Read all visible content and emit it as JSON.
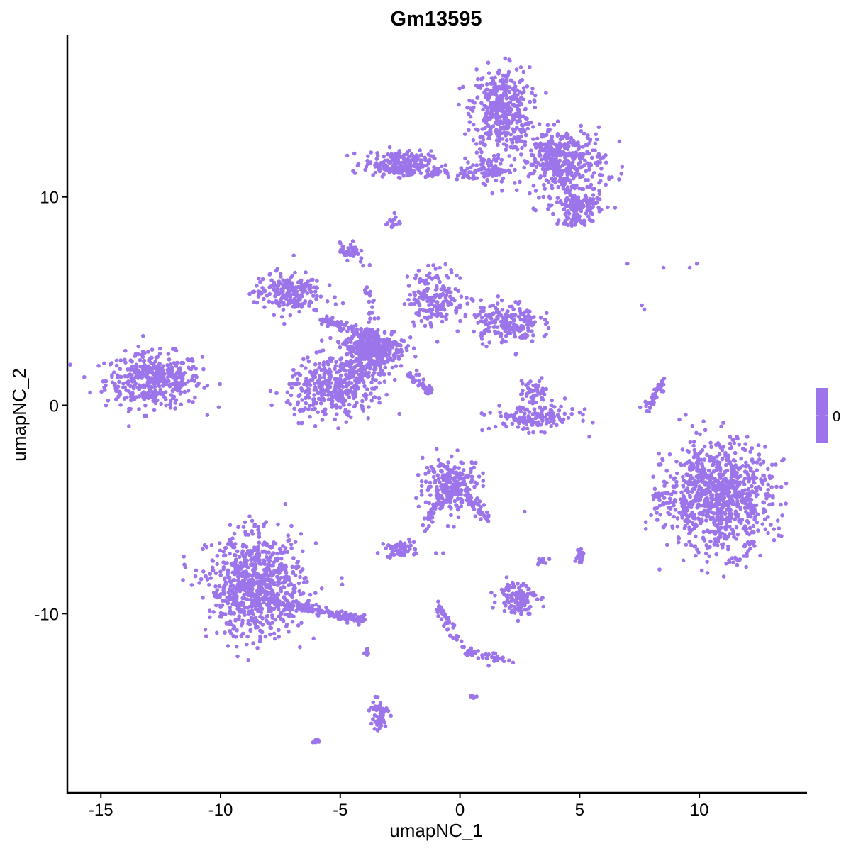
{
  "chart_data": {
    "type": "scatter",
    "title": "Gm13595",
    "xlabel": "umapNC_1",
    "ylabel": "umapNC_2",
    "xlim": [
      -16.4,
      14.5
    ],
    "ylim": [
      -18.6,
      17.75
    ],
    "xticks": [
      -15,
      -10,
      -5,
      0,
      5,
      10
    ],
    "yticks": [
      -10,
      0,
      10
    ],
    "grid": false,
    "point_color": "#9c75ea",
    "legend": {
      "type": "colorbar",
      "placement": "right",
      "labels": [
        "0"
      ],
      "color": "#9c75ea"
    },
    "clusters": [
      {
        "cx": -12.8,
        "cy": 1.2,
        "sx": 1.0,
        "sy": 0.65,
        "n": 420
      },
      {
        "cx": 1.7,
        "cy": 14.2,
        "sx": 0.6,
        "sy": 1.0,
        "n": 420
      },
      {
        "cx": 4.3,
        "cy": 11.7,
        "sx": 0.9,
        "sy": 0.8,
        "n": 380
      },
      {
        "cx": 5.0,
        "cy": 9.6,
        "sx": 0.5,
        "sy": 0.3,
        "n": 120
      },
      {
        "cx": 4.8,
        "cy": 8.9,
        "sx": 0.3,
        "sy": 0.2,
        "n": 40
      },
      {
        "cx": -2.6,
        "cy": 11.6,
        "sx": 0.7,
        "sy": 0.3,
        "n": 200
      },
      {
        "cx": 1.2,
        "cy": 11.3,
        "sx": 0.4,
        "sy": 0.3,
        "n": 80
      },
      {
        "cx": -2.8,
        "cy": 8.8,
        "sx": 0.15,
        "sy": 0.2,
        "n": 15
      },
      {
        "cx": -3.5,
        "cy": 2.75,
        "sx": 0.6,
        "sy": 0.5,
        "n": 300
      },
      {
        "cx": -4.2,
        "cy": 2.0,
        "sx": 0.5,
        "sy": 0.8,
        "n": 150
      },
      {
        "cx": -7.2,
        "cy": 5.4,
        "sx": 0.7,
        "sy": 0.5,
        "n": 200
      },
      {
        "cx": -4.6,
        "cy": 7.4,
        "sx": 0.2,
        "sy": 0.2,
        "n": 40
      },
      {
        "cx": -1.0,
        "cy": 5.2,
        "sx": 0.6,
        "sy": 0.7,
        "n": 180
      },
      {
        "cx": 1.9,
        "cy": 4.0,
        "sx": 0.7,
        "sy": 0.5,
        "n": 200
      },
      {
        "cx": -5.4,
        "cy": 0.8,
        "sx": 0.9,
        "sy": 0.7,
        "n": 350
      },
      {
        "cx": 3.1,
        "cy": -0.6,
        "sx": 0.9,
        "sy": 0.3,
        "n": 150
      },
      {
        "cx": 3.1,
        "cy": 0.6,
        "sx": 0.3,
        "sy": 0.3,
        "n": 50
      },
      {
        "cx": 10.8,
        "cy": -4.4,
        "sx": 1.1,
        "sy": 1.3,
        "n": 900
      },
      {
        "cx": 8.5,
        "cy": -4.5,
        "sx": 0.3,
        "sy": 0.4,
        "n": 30
      },
      {
        "cx": -0.3,
        "cy": -3.8,
        "sx": 0.6,
        "sy": 0.6,
        "n": 250
      },
      {
        "cx": -8.5,
        "cy": -8.7,
        "sx": 1.0,
        "sy": 1.2,
        "n": 800
      },
      {
        "cx": -2.5,
        "cy": -6.9,
        "sx": 0.3,
        "sy": 0.2,
        "n": 60
      },
      {
        "cx": 2.4,
        "cy": -9.2,
        "sx": 0.4,
        "sy": 0.4,
        "n": 120
      },
      {
        "cx": 5.0,
        "cy": -7.2,
        "sx": 0.1,
        "sy": 0.2,
        "n": 25
      },
      {
        "cx": 3.4,
        "cy": -7.5,
        "sx": 0.1,
        "sy": 0.1,
        "n": 10
      },
      {
        "cx": -3.4,
        "cy": -14.9,
        "sx": 0.2,
        "sy": 0.4,
        "n": 60
      },
      {
        "cx": -3.9,
        "cy": -11.8,
        "sx": 0.05,
        "sy": 0.1,
        "n": 8
      },
      {
        "cx": -6.0,
        "cy": -16.1,
        "sx": 0.1,
        "sy": 0.05,
        "n": 8
      },
      {
        "cx": 0.6,
        "cy": -14.0,
        "sx": 0.1,
        "sy": 0.05,
        "n": 8
      }
    ],
    "trails": [
      {
        "from": [
          -2.6,
          11.3
        ],
        "to": [
          0.6,
          11.1
        ],
        "n": 60
      },
      {
        "from": [
          -5.8,
          4.1
        ],
        "to": [
          -3.6,
          3.4
        ],
        "n": 80
      },
      {
        "from": [
          -2.2,
          1.5
        ],
        "to": [
          -1.2,
          0.6
        ],
        "n": 40
      },
      {
        "from": [
          -4.0,
          6.9
        ],
        "to": [
          -3.7,
          4.2
        ],
        "n": 20
      },
      {
        "from": [
          7.8,
          -0.2
        ],
        "to": [
          8.5,
          1.2
        ],
        "n": 40
      },
      {
        "from": [
          0.3,
          -4.3
        ],
        "to": [
          1.1,
          -5.5
        ],
        "n": 40
      },
      {
        "from": [
          -7.6,
          -9.5
        ],
        "to": [
          -4.0,
          -10.3
        ],
        "n": 160
      },
      {
        "from": [
          -1.0,
          -9.5
        ],
        "to": [
          0.0,
          -11.5
        ],
        "n": 40
      },
      {
        "from": [
          0.0,
          -11.7
        ],
        "to": [
          2.3,
          -12.4
        ],
        "n": 40
      },
      {
        "from": [
          -1.6,
          -6.1
        ],
        "to": [
          -0.8,
          -4.5
        ],
        "n": 30
      },
      {
        "from": [
          3.4,
          12.5
        ],
        "to": [
          4.8,
          10.0
        ],
        "n": 60
      }
    ],
    "sparse_points": [
      [
        7.0,
        6.8
      ],
      [
        8.5,
        6.6
      ],
      [
        9.6,
        6.6
      ],
      [
        9.9,
        6.8
      ],
      [
        7.6,
        4.8
      ],
      [
        7.7,
        4.6
      ],
      [
        2.7,
        -5.1
      ],
      [
        -1.0,
        -7.1
      ],
      [
        -0.7,
        -7.1
      ],
      [
        1.2,
        -12.5
      ],
      [
        7.9,
        -0.3
      ]
    ]
  }
}
